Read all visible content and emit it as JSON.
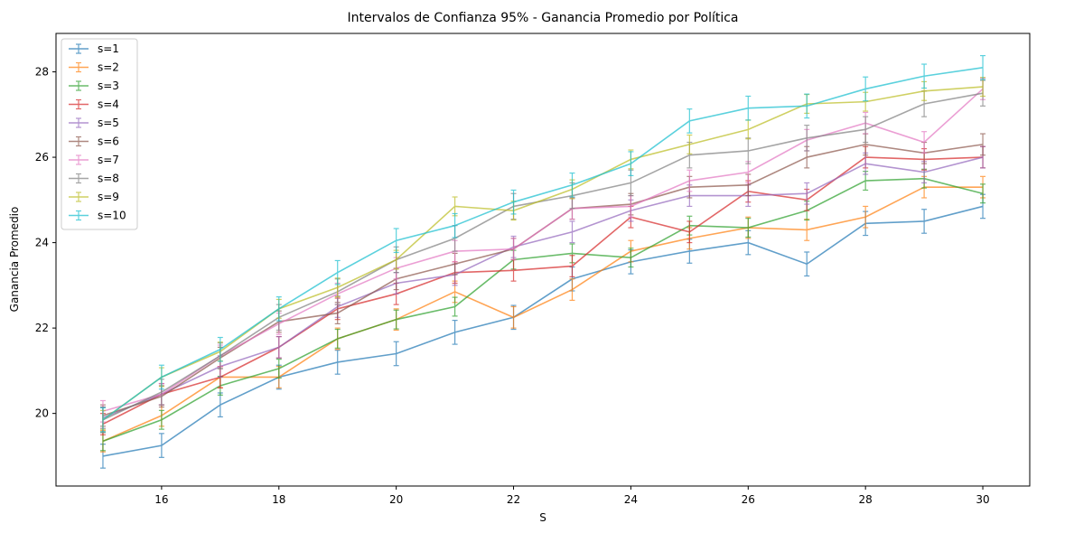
{
  "chart_data": {
    "type": "line",
    "title": "Intervalos de Confianza 95% - Ganancia Promedio por Política",
    "xlabel": "S",
    "ylabel": "Ganancia Promedio",
    "xlim": [
      14.2,
      30.8
    ],
    "ylim": [
      18.3,
      28.9
    ],
    "xticks": [
      16,
      18,
      20,
      22,
      24,
      26,
      28,
      30
    ],
    "yticks": [
      20,
      22,
      24,
      26,
      28
    ],
    "grid": false,
    "legend_position": "top-left",
    "x": [
      15,
      16,
      17,
      18,
      19,
      20,
      21,
      22,
      23,
      24,
      25,
      26,
      27,
      28,
      29,
      30
    ],
    "series": [
      {
        "name": "s=1",
        "color": "#1f77b4",
        "err": 0.28,
        "values": [
          19.0,
          19.25,
          20.2,
          20.85,
          21.2,
          21.4,
          21.9,
          22.25,
          23.15,
          23.55,
          23.8,
          24.0,
          23.5,
          24.45,
          24.5,
          24.85
        ]
      },
      {
        "name": "s=2",
        "color": "#ff7f0e",
        "err": 0.25,
        "values": [
          19.35,
          19.95,
          20.85,
          20.85,
          21.75,
          22.2,
          22.85,
          22.25,
          22.9,
          23.8,
          24.1,
          24.35,
          24.3,
          24.6,
          25.3,
          25.3
        ]
      },
      {
        "name": "s=3",
        "color": "#2ca02c",
        "err": 0.22,
        "values": [
          19.35,
          19.85,
          20.65,
          21.05,
          21.75,
          22.2,
          22.5,
          23.6,
          23.75,
          23.65,
          24.4,
          24.35,
          24.75,
          25.45,
          25.5,
          25.15
        ]
      },
      {
        "name": "s=4",
        "color": "#d62728",
        "err": 0.25,
        "values": [
          19.75,
          20.45,
          20.85,
          21.55,
          22.45,
          22.8,
          23.3,
          23.35,
          23.45,
          24.6,
          24.25,
          25.2,
          25.0,
          26.0,
          25.95,
          26.0
        ]
      },
      {
        "name": "s=5",
        "color": "#9467bd",
        "err": 0.25,
        "values": [
          19.9,
          20.45,
          21.1,
          21.55,
          22.5,
          23.05,
          23.25,
          23.9,
          24.25,
          24.75,
          25.1,
          25.1,
          25.15,
          25.85,
          25.65,
          26.0
        ]
      },
      {
        "name": "s=6",
        "color": "#8c564b",
        "err": 0.25,
        "values": [
          19.95,
          20.4,
          21.3,
          22.15,
          22.35,
          23.15,
          23.5,
          23.85,
          24.8,
          24.9,
          25.3,
          25.35,
          26.0,
          26.3,
          26.1,
          26.3
        ]
      },
      {
        "name": "s=7",
        "color": "#e377c2",
        "err": 0.25,
        "values": [
          20.05,
          20.45,
          21.35,
          22.1,
          22.8,
          23.4,
          23.8,
          23.85,
          24.8,
          24.85,
          25.45,
          25.65,
          26.4,
          26.8,
          26.35,
          27.6
        ]
      },
      {
        "name": "s=8",
        "color": "#7f7f7f",
        "err": 0.3,
        "values": [
          19.85,
          20.5,
          21.35,
          22.25,
          22.85,
          23.6,
          24.1,
          24.85,
          25.1,
          25.4,
          26.05,
          26.15,
          26.45,
          26.65,
          27.25,
          27.5
        ]
      },
      {
        "name": "s=9",
        "color": "#bcbd22",
        "err": 0.22,
        "values": [
          19.85,
          20.85,
          21.45,
          22.45,
          22.95,
          23.6,
          24.85,
          24.75,
          25.25,
          25.95,
          26.3,
          26.65,
          27.25,
          27.3,
          27.55,
          27.65
        ]
      },
      {
        "name": "s=10",
        "color": "#17becf",
        "err": 0.28,
        "values": [
          19.85,
          20.85,
          21.5,
          22.45,
          23.3,
          24.05,
          24.4,
          24.95,
          25.35,
          25.85,
          26.85,
          27.15,
          27.2,
          27.6,
          27.9,
          28.1
        ]
      }
    ]
  }
}
